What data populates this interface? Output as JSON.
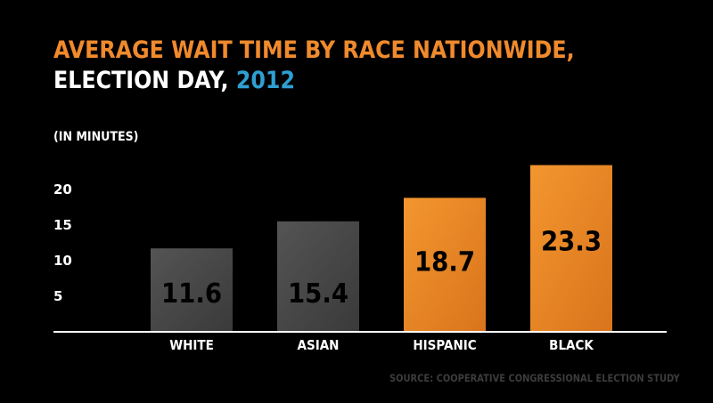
{
  "header": {
    "title_line1": "AVERAGE WAIT TIME BY RACE NATIONWIDE,",
    "title_line2": "ELECTION DAY, ",
    "title_year": "2012"
  },
  "unit_label": "(IN MINUTES)",
  "source": "SOURCE: COOPERATIVE CONGRESSIONAL ELECTION STUDY",
  "colors": {
    "title_orange": "#f08a2c",
    "title_blue": "#2f9fd3",
    "bar_gray": "#4a4a4a",
    "bar_orange": "#f0892a",
    "value_text": "#000000",
    "axis": "#ffffff"
  },
  "chart_data": {
    "type": "bar",
    "title": "AVERAGE WAIT TIME BY RACE NATIONWIDE, ELECTION DAY, 2012",
    "ylabel": "(IN MINUTES)",
    "categories": [
      "WHITE",
      "ASIAN",
      "HISPANIC",
      "BLACK"
    ],
    "values": [
      11.6,
      15.4,
      18.7,
      23.3
    ],
    "value_labels": [
      "11.6",
      "15.4",
      "18.7",
      "23.3"
    ],
    "bar_colors": [
      "#4a4a4a",
      "#4a4a4a",
      "#f0892a",
      "#f0892a"
    ],
    "yticks": [
      5,
      10,
      15,
      20
    ],
    "ylim": [
      0,
      25
    ],
    "grid": false,
    "legend": "none"
  }
}
